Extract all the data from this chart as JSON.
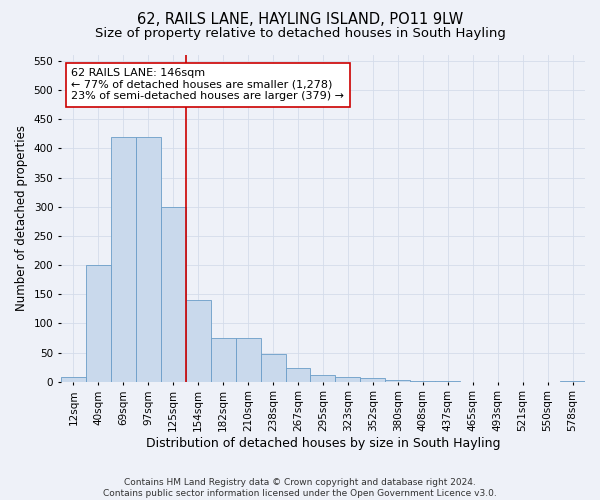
{
  "title": "62, RAILS LANE, HAYLING ISLAND, PO11 9LW",
  "subtitle": "Size of property relative to detached houses in South Hayling",
  "xlabel": "Distribution of detached houses by size in South Hayling",
  "ylabel": "Number of detached properties",
  "categories": [
    "12sqm",
    "40sqm",
    "69sqm",
    "97sqm",
    "125sqm",
    "154sqm",
    "182sqm",
    "210sqm",
    "238sqm",
    "267sqm",
    "295sqm",
    "323sqm",
    "352sqm",
    "380sqm",
    "408sqm",
    "437sqm",
    "465sqm",
    "493sqm",
    "521sqm",
    "550sqm",
    "578sqm"
  ],
  "values": [
    8,
    200,
    420,
    420,
    300,
    140,
    75,
    75,
    48,
    23,
    12,
    8,
    7,
    3,
    1,
    1,
    0,
    0,
    0,
    0,
    2
  ],
  "bar_color": "#c9d9ec",
  "bar_edge_color": "#6a9dc8",
  "vline_x": 4.5,
  "vline_color": "#cc0000",
  "annotation_line1": "62 RAILS LANE: 146sqm",
  "annotation_line2": "← 77% of detached houses are smaller (1,278)",
  "annotation_line3": "23% of semi-detached houses are larger (379) →",
  "annotation_box_color": "#ffffff",
  "annotation_box_edge": "#cc0000",
  "grid_color": "#d4dcea",
  "background_color": "#eef1f8",
  "ylim": [
    0,
    560
  ],
  "yticks": [
    0,
    50,
    100,
    150,
    200,
    250,
    300,
    350,
    400,
    450,
    500,
    550
  ],
  "footnote": "Contains HM Land Registry data © Crown copyright and database right 2024.\nContains public sector information licensed under the Open Government Licence v3.0.",
  "title_fontsize": 10.5,
  "subtitle_fontsize": 9.5,
  "xlabel_fontsize": 9,
  "ylabel_fontsize": 8.5,
  "tick_fontsize": 7.5,
  "annotation_fontsize": 8,
  "footnote_fontsize": 6.5
}
